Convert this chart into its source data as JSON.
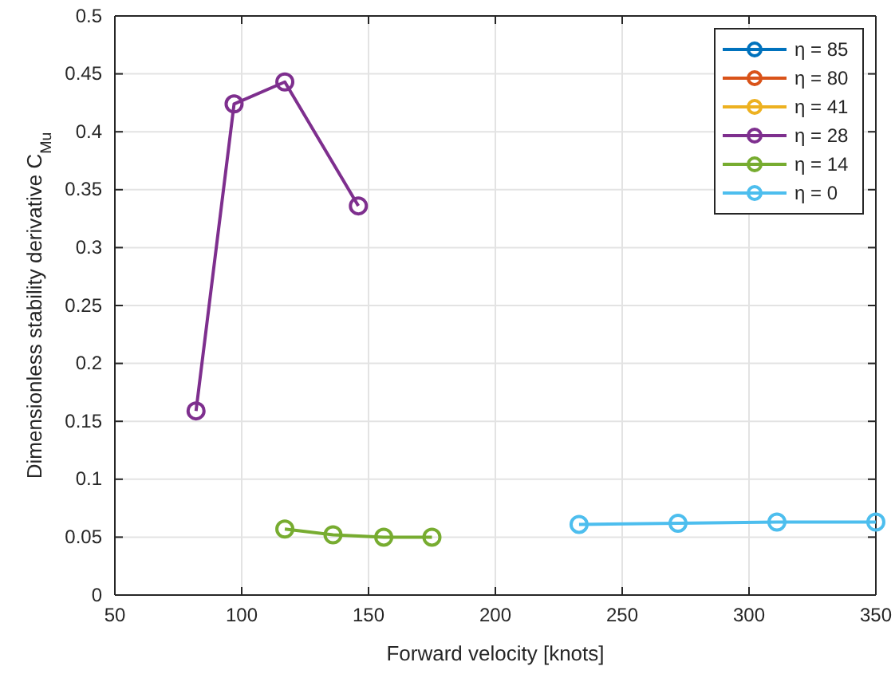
{
  "chart_data": {
    "type": "line",
    "xlabel": "Forward velocity [knots]",
    "ylabel": "Dimensionless stability derivative C$_{Mu}$",
    "xlim": [
      50,
      350
    ],
    "xticks": [
      50,
      100,
      150,
      200,
      250,
      300,
      350
    ],
    "ylim": [
      0,
      0.5
    ],
    "yticks": [
      0,
      0.05,
      0.1,
      0.15,
      0.2,
      0.25,
      0.3,
      0.35,
      0.4,
      0.45,
      0.5
    ],
    "grid": true,
    "legend": "top right",
    "marker": "circle",
    "line_style": "solid",
    "series": [
      {
        "name": "η = 85",
        "color": "#0072bd"
      },
      {
        "name": "η = 80",
        "color": "#d95319"
      },
      {
        "name": "η = 41",
        "color": "#edb120"
      },
      {
        "name": "η = 28",
        "color": "#7e2f8e",
        "x": [
          82,
          97,
          117,
          146
        ],
        "values": [
          0.159,
          0.424,
          0.443,
          0.336
        ]
      },
      {
        "name": "η = 14",
        "color": "#77ac30",
        "x": [
          117,
          136,
          156,
          175
        ],
        "values": [
          0.057,
          0.052,
          0.05,
          0.05
        ]
      },
      {
        "name": "η = 0",
        "color": "#4dbeee",
        "x": [
          233,
          272,
          311,
          350
        ],
        "values": [
          0.061,
          0.062,
          0.063,
          0.063
        ]
      }
    ]
  }
}
